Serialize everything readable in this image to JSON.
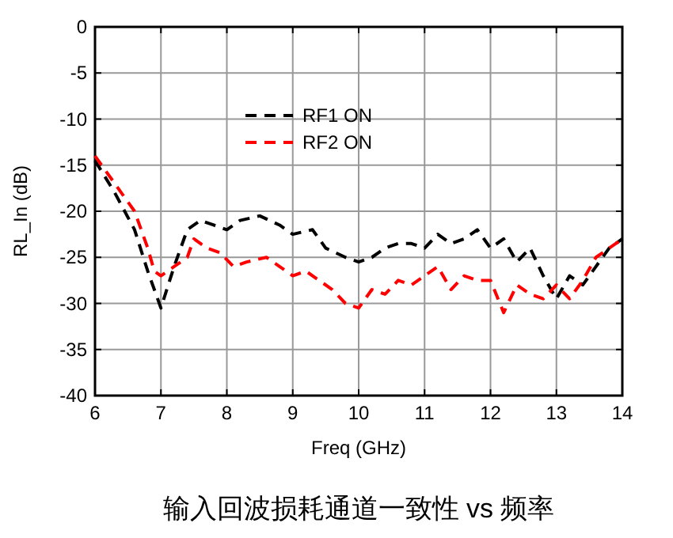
{
  "chart_data": {
    "type": "line",
    "title": "输入回波损耗通道一致性 vs 频率",
    "xlabel": "Freq (GHz)",
    "ylabel": "RL_In (dB)",
    "xlim": [
      6,
      14
    ],
    "xticks": [
      6,
      7,
      8,
      9,
      10,
      11,
      12,
      13,
      14
    ],
    "ylim": [
      -40,
      0
    ],
    "yticks": [
      -40,
      -35,
      -30,
      -25,
      -20,
      -15,
      -10,
      -5,
      0
    ],
    "grid": true,
    "legend": "top",
    "line_style": "dashed",
    "series": [
      {
        "name": "RF1 ON",
        "color": "#000000",
        "x": [
          6.0,
          6.3,
          6.6,
          6.8,
          7.0,
          7.2,
          7.4,
          7.6,
          7.8,
          8.0,
          8.2,
          8.5,
          8.8,
          9.0,
          9.3,
          9.5,
          9.8,
          10.0,
          10.2,
          10.4,
          10.6,
          10.8,
          11.0,
          11.2,
          11.4,
          11.6,
          11.8,
          12.0,
          12.2,
          12.4,
          12.6,
          12.8,
          13.0,
          13.2,
          13.4,
          13.6,
          13.8,
          14.0
        ],
        "values": [
          -14.5,
          -18,
          -22,
          -26.5,
          -30.5,
          -26,
          -22,
          -21,
          -21.5,
          -22,
          -21,
          -20.5,
          -21.5,
          -22.5,
          -22,
          -24,
          -25,
          -25.5,
          -25,
          -24,
          -23.5,
          -23.5,
          -24,
          -22.5,
          -23.5,
          -23,
          -22,
          -24,
          -23,
          -25.5,
          -24,
          -27,
          -29.5,
          -27,
          -28,
          -26,
          -24,
          -23
        ]
      },
      {
        "name": "RF2 ON",
        "color": "#ff0000",
        "x": [
          6.0,
          6.3,
          6.6,
          6.8,
          6.9,
          7.0,
          7.2,
          7.4,
          7.5,
          7.7,
          7.9,
          8.1,
          8.3,
          8.6,
          8.8,
          9.0,
          9.2,
          9.4,
          9.6,
          9.8,
          10.0,
          10.2,
          10.4,
          10.6,
          10.8,
          11.0,
          11.2,
          11.4,
          11.6,
          11.8,
          12.0,
          12.2,
          12.4,
          12.6,
          12.8,
          13.0,
          13.2,
          13.4,
          13.6,
          13.8,
          14.0
        ],
        "values": [
          -14,
          -17,
          -20,
          -24,
          -26.5,
          -27,
          -26,
          -25,
          -23,
          -24,
          -24.5,
          -26,
          -25.5,
          -25,
          -26,
          -27,
          -26.5,
          -27.5,
          -28.5,
          -30,
          -30.5,
          -28.5,
          -29,
          -27.5,
          -28,
          -27,
          -26,
          -28.5,
          -27,
          -27.5,
          -27.5,
          -31,
          -28,
          -29,
          -29.5,
          -28,
          -29.5,
          -27.5,
          -25,
          -24,
          -23
        ]
      }
    ]
  }
}
